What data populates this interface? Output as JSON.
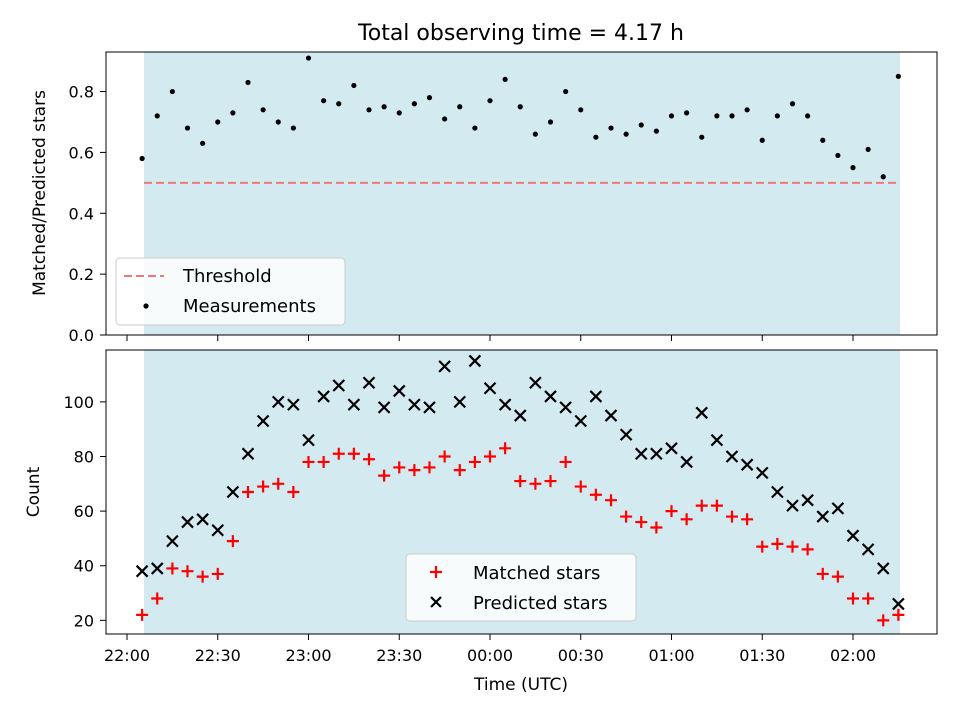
{
  "chart_data": [
    {
      "type": "scatter",
      "title": "Total observing time = 4.17 h",
      "ylabel": "Matched/Predicted stars",
      "ylim": [
        0,
        0.93
      ],
      "yticks": [
        "0.0",
        "0.2",
        "0.4",
        "0.6",
        "0.8"
      ],
      "threshold": 0.5,
      "legend": {
        "placement": "lower left",
        "entries": [
          "Threshold",
          "Measurements"
        ]
      },
      "colors": {
        "shade": "#d4eaf1",
        "threshold": "#f07878",
        "points": "#000000"
      },
      "x_start_min": 5,
      "x_step_min": 5,
      "series": [
        {
          "name": "Measurements",
          "values": [
            0.58,
            0.72,
            0.8,
            0.68,
            0.63,
            0.7,
            0.73,
            0.83,
            0.74,
            0.7,
            0.68,
            0.91,
            0.77,
            0.76,
            0.82,
            0.74,
            0.75,
            0.73,
            0.76,
            0.78,
            0.71,
            0.75,
            0.68,
            0.77,
            0.84,
            0.75,
            0.66,
            0.7,
            0.8,
            0.74,
            0.65,
            0.68,
            0.66,
            0.69,
            0.67,
            0.72,
            0.73,
            0.65,
            0.72,
            0.72,
            0.74,
            0.64,
            0.72,
            0.76,
            0.72,
            0.64,
            0.59,
            0.55,
            0.61,
            0.52,
            0.85
          ]
        }
      ]
    },
    {
      "type": "scatter",
      "xlabel": "Time (UTC)",
      "ylabel": "Count",
      "ylim": [
        15,
        119
      ],
      "yticks": [
        "20",
        "40",
        "60",
        "80",
        "100"
      ],
      "xticks": [
        "22:00",
        "22:30",
        "23:00",
        "23:30",
        "00:00",
        "00:30",
        "01:00",
        "01:30",
        "02:00"
      ],
      "legend": {
        "placement": "lower center",
        "entries": [
          "Matched stars",
          "Predicted stars"
        ]
      },
      "colors": {
        "matched": "#ff0000",
        "predicted": "#000000"
      },
      "x_start_min": 5,
      "x_step_min": 5,
      "series": [
        {
          "name": "Matched stars",
          "values": [
            22,
            28,
            39,
            38,
            36,
            37,
            49,
            67,
            69,
            70,
            67,
            78,
            78,
            81,
            81,
            79,
            73,
            76,
            75,
            76,
            80,
            75,
            78,
            80,
            83,
            71,
            70,
            71,
            78,
            69,
            66,
            64,
            58,
            56,
            54,
            60,
            57,
            62,
            62,
            58,
            57,
            47,
            48,
            47,
            46,
            37,
            36,
            28,
            28,
            20,
            22
          ]
        },
        {
          "name": "Predicted stars",
          "values": [
            38,
            39,
            49,
            56,
            57,
            53,
            67,
            81,
            93,
            100,
            99,
            86,
            102,
            106,
            99,
            107,
            98,
            104,
            99,
            98,
            113,
            100,
            115,
            105,
            99,
            95,
            107,
            102,
            98,
            93,
            102,
            95,
            88,
            81,
            81,
            83,
            78,
            96,
            86,
            80,
            77,
            74,
            67,
            62,
            64,
            58,
            61,
            51,
            46,
            39,
            26
          ]
        }
      ]
    }
  ]
}
